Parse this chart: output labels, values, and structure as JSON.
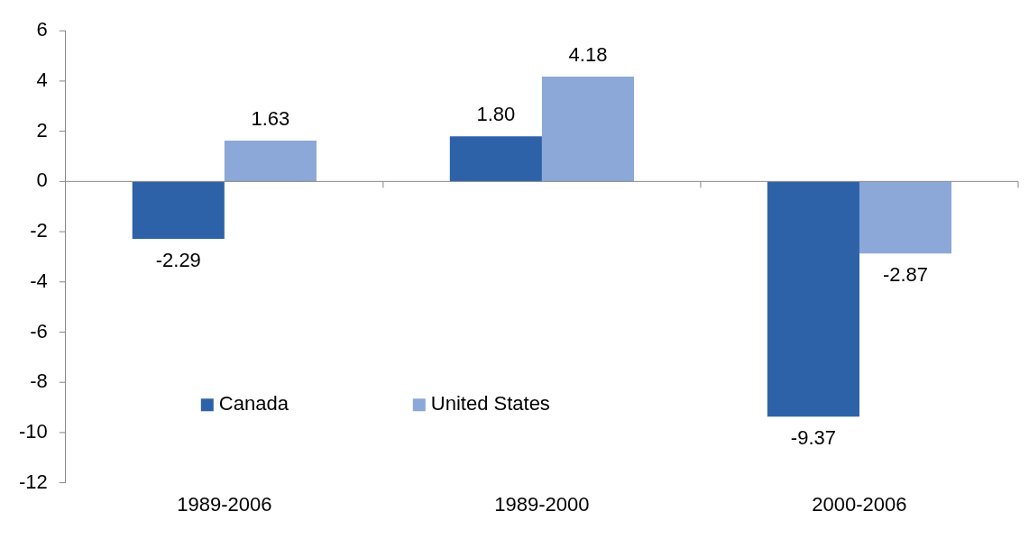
{
  "chart_data": {
    "type": "bar",
    "categories": [
      "1989-2006",
      "1989-2000",
      "2000-2006"
    ],
    "series": [
      {
        "name": "Canada",
        "color": "#2e62a8",
        "values": [
          -2.29,
          1.8,
          -9.37
        ],
        "value_labels": [
          "-2.29",
          "1.80",
          "-9.37"
        ]
      },
      {
        "name": "United States",
        "color": "#8ca8d8",
        "values": [
          1.63,
          4.18,
          -2.87
        ],
        "value_labels": [
          "1.63",
          "4.18",
          "-2.87"
        ]
      }
    ],
    "ref_lines": [
      {
        "axis": "y",
        "value": 0,
        "color": "#868686"
      }
    ],
    "ylim": [
      -12,
      6
    ],
    "yticks": [
      -12,
      -10,
      -8,
      -6,
      -4,
      -2,
      0,
      2,
      4,
      6
    ],
    "grid": false,
    "legend": "bottom left"
  }
}
